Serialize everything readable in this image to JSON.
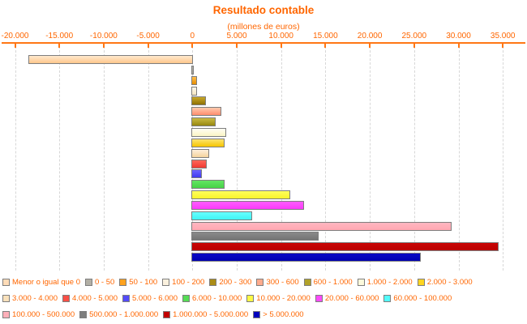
{
  "title": "Resultado contable",
  "subtitle": "(millones de euros)",
  "colors": {
    "accent_text": "#FF6600",
    "axis_line": "#FF7716",
    "gridline": "#D7D7D7",
    "bar_border": "#7E7E7E",
    "background": "#FFFFFF"
  },
  "chart_data": {
    "type": "bar",
    "orientation": "horizontal",
    "title": "Resultado contable",
    "unit_subtitle": "(millones de euros)",
    "value_unit": "millones de euros",
    "xlim": [
      -20000,
      35000
    ],
    "x_ticks": [
      -20000,
      -15000,
      -10000,
      -5000,
      0,
      5000,
      10000,
      15000,
      20000,
      25000,
      30000,
      35000
    ],
    "x_tick_labels": [
      "-20.000",
      "-15.000",
      "-10.000",
      "-5.000",
      "0",
      "5.000",
      "10.000",
      "15.000",
      "20.000",
      "25.000",
      "30.000",
      "35.000"
    ],
    "grid": "vertical-dashed",
    "legend_position": "bottom",
    "categories": [
      "Menor o igual que 0",
      "0 - 50",
      "50 - 100",
      "100 - 200",
      "200 - 300",
      "300 - 600",
      "600 - 1.000",
      "1.000 - 2.000",
      "2.000 - 3.000",
      "3.000 - 4.000",
      "4.000 - 5.000",
      "5.000 - 6.000",
      "6.000 - 10.000",
      "10.000 - 20.000",
      "20.000 - 60.000",
      "60.000 - 100.000",
      "100.000 - 500.000",
      "500.000 - 1.000.000",
      "1.000.000 - 5.000.000",
      "> 5.000.000"
    ],
    "values": [
      -18400,
      25,
      450,
      430,
      1460,
      3170,
      2560,
      3690,
      3510,
      1770,
      1550,
      950,
      3540,
      10970,
      12520,
      6670,
      29100,
      14170,
      34400,
      25690
    ],
    "bars": [
      {
        "label": "Menor o igual que 0",
        "value": -18400,
        "color_top": "#FFE9CE",
        "color_bottom": "#FFC78C",
        "swatch": "#FFDCB8"
      },
      {
        "label": "0 - 50",
        "value": 25,
        "color_top": "#B5B2A8",
        "color_bottom": "#A5A298",
        "swatch": "#B2AFA5"
      },
      {
        "label": "50 - 100",
        "value": 450,
        "color_top": "#FFBE4D",
        "color_bottom": "#E68E00",
        "swatch": "#FFA21F"
      },
      {
        "label": "100 - 200",
        "value": 430,
        "color_top": "#FEF8EB",
        "color_bottom": "#F5E4C0",
        "swatch": "#FBF1DE"
      },
      {
        "label": "200 - 300",
        "value": 1460,
        "color_top": "#C9A827",
        "color_bottom": "#8E7005",
        "swatch": "#AB8C16"
      },
      {
        "label": "300 - 600",
        "value": 3170,
        "color_top": "#FFC9AD",
        "color_bottom": "#FF8E6E",
        "swatch": "#FFAB8D"
      },
      {
        "label": "600 - 1.000",
        "value": 2560,
        "color_top": "#CBBB42",
        "color_bottom": "#968710",
        "swatch": "#B1A229"
      },
      {
        "label": "1.000 - 2.000",
        "value": 3690,
        "color_top": "#FFFEF4",
        "color_bottom": "#FBF4C4",
        "swatch": "#FDFADC"
      },
      {
        "label": "2.000 - 3.000",
        "value": 3510,
        "color_top": "#FBE470",
        "color_bottom": "#F7C500",
        "swatch": "#FFD51F"
      },
      {
        "label": "3.000 - 4.000",
        "value": 1770,
        "color_top": "#FEEFDB",
        "color_bottom": "#F5D39C",
        "swatch": "#FAE1BB"
      },
      {
        "label": "4.000 - 5.000",
        "value": 1550,
        "color_top": "#FF685A",
        "color_bottom": "#EF3A32",
        "swatch": "#F94F46"
      },
      {
        "label": "5.000 - 6.000",
        "value": 950,
        "color_top": "#6C64FF",
        "color_bottom": "#403AEE",
        "swatch": "#534BF8"
      },
      {
        "label": "6.000 - 10.000",
        "value": 3540,
        "color_top": "#62E562",
        "color_bottom": "#48D348",
        "swatch": "#55DC55"
      },
      {
        "label": "10.000 - 20.000",
        "value": 10970,
        "color_top": "#FFFF5C",
        "color_bottom": "#F9F32B",
        "swatch": "#FCF943"
      },
      {
        "label": "20.000 - 60.000",
        "value": 12520,
        "color_top": "#FF5CFF",
        "color_bottom": "#F93BF9",
        "swatch": "#FC4BFC"
      },
      {
        "label": "60.000 - 100.000",
        "value": 6670,
        "color_top": "#66FFFF",
        "color_bottom": "#3FF4F4",
        "swatch": "#52FCFC"
      },
      {
        "label": "100.000 - 500.000",
        "value": 29100,
        "color_top": "#FFB6C0",
        "color_bottom": "#FFA8B2",
        "swatch": "#FFAFB9"
      },
      {
        "label": "500.000 - 1.000.000",
        "value": 14170,
        "color_top": "#8A8A8A",
        "color_bottom": "#747474",
        "swatch": "#7E7E7E"
      },
      {
        "label": "1.000.000 - 5.000.000",
        "value": 34400,
        "color_top": "#C90505",
        "color_bottom": "#BB0000",
        "swatch": "#C20000"
      },
      {
        "label": "> 5.000.000",
        "value": 25690,
        "color_top": "#0A0AC6",
        "color_bottom": "#0000B2",
        "swatch": "#0000BC"
      }
    ],
    "legend_rows": [
      [
        0,
        1,
        2,
        3,
        4,
        5,
        6,
        7,
        8
      ],
      [
        9,
        10,
        11,
        12,
        13,
        14,
        15
      ],
      [
        16,
        17,
        18,
        19
      ]
    ]
  }
}
